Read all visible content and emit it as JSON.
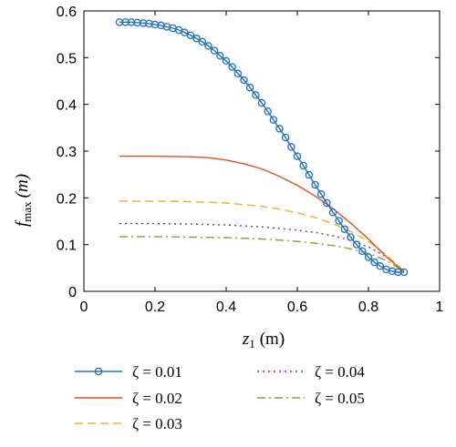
{
  "chart_data": {
    "type": "line",
    "xlabel_var": "z",
    "xlabel_sub": "1",
    "xlabel_unit": "(m)",
    "ylabel_var": "f",
    "ylabel_sub": "max",
    "ylabel_unit": "(m)",
    "xlim": [
      0,
      1
    ],
    "ylim": [
      0,
      0.6
    ],
    "xticks": [
      0,
      0.2,
      0.4,
      0.6,
      0.8,
      1
    ],
    "xtick_labels": [
      "0",
      "0.2",
      "0.4",
      "0.6",
      "0.8",
      "1"
    ],
    "yticks": [
      0,
      0.1,
      0.2,
      0.3,
      0.4,
      0.5,
      0.6
    ],
    "ytick_labels": [
      "0",
      "0.1",
      "0.2",
      "0.3",
      "0.4",
      "0.5",
      "0.6"
    ],
    "grid": false,
    "legend_position": "below",
    "series": [
      {
        "name": "ζ = 0.01",
        "color": "#1f6fbf",
        "style": "solid-circle",
        "x": [
          0.1,
          0.117,
          0.133,
          0.15,
          0.167,
          0.183,
          0.2,
          0.217,
          0.233,
          0.25,
          0.267,
          0.283,
          0.3,
          0.317,
          0.333,
          0.35,
          0.367,
          0.383,
          0.4,
          0.417,
          0.433,
          0.45,
          0.467,
          0.483,
          0.5,
          0.517,
          0.533,
          0.55,
          0.567,
          0.583,
          0.6,
          0.617,
          0.633,
          0.65,
          0.667,
          0.683,
          0.7,
          0.717,
          0.733,
          0.75,
          0.767,
          0.783,
          0.8,
          0.817,
          0.833,
          0.85,
          0.867,
          0.883,
          0.9
        ],
        "y": [
          0.576,
          0.576,
          0.576,
          0.575,
          0.574,
          0.573,
          0.571,
          0.569,
          0.566,
          0.563,
          0.559,
          0.554,
          0.548,
          0.541,
          0.534,
          0.525,
          0.515,
          0.504,
          0.493,
          0.48,
          0.466,
          0.452,
          0.436,
          0.42,
          0.403,
          0.385,
          0.367,
          0.348,
          0.329,
          0.309,
          0.289,
          0.269,
          0.249,
          0.228,
          0.208,
          0.189,
          0.169,
          0.151,
          0.133,
          0.116,
          0.1,
          0.086,
          0.073,
          0.062,
          0.054,
          0.047,
          0.043,
          0.041,
          0.041
        ]
      },
      {
        "name": "ζ = 0.02",
        "color": "#d95319",
        "style": "solid",
        "x": [
          0.1,
          0.2,
          0.3,
          0.35,
          0.4,
          0.45,
          0.5,
          0.55,
          0.6,
          0.65,
          0.7,
          0.75,
          0.8,
          0.85,
          0.9
        ],
        "y": [
          0.289,
          0.289,
          0.288,
          0.286,
          0.281,
          0.273,
          0.262,
          0.246,
          0.227,
          0.204,
          0.177,
          0.146,
          0.112,
          0.074,
          0.042
        ]
      },
      {
        "name": "ζ = 0.03",
        "color": "#edb120",
        "style": "dashed",
        "x": [
          0.1,
          0.2,
          0.3,
          0.4,
          0.5,
          0.55,
          0.6,
          0.65,
          0.7,
          0.75,
          0.8,
          0.85,
          0.9
        ],
        "y": [
          0.193,
          0.193,
          0.192,
          0.189,
          0.182,
          0.176,
          0.168,
          0.158,
          0.145,
          0.128,
          0.107,
          0.078,
          0.043
        ]
      },
      {
        "name": "ζ = 0.04",
        "color": "#7e2f8e",
        "style": "dotted",
        "x": [
          0.1,
          0.2,
          0.3,
          0.4,
          0.5,
          0.6,
          0.65,
          0.7,
          0.75,
          0.8,
          0.85,
          0.9
        ],
        "y": [
          0.145,
          0.145,
          0.144,
          0.142,
          0.138,
          0.131,
          0.126,
          0.119,
          0.109,
          0.095,
          0.074,
          0.043
        ]
      },
      {
        "name": "ζ = 0.05",
        "color": "#77ac30",
        "style": "dash-dot",
        "x": [
          0.1,
          0.2,
          0.3,
          0.4,
          0.5,
          0.6,
          0.65,
          0.7,
          0.75,
          0.8,
          0.85,
          0.9
        ],
        "y": [
          0.117,
          0.117,
          0.116,
          0.115,
          0.112,
          0.107,
          0.103,
          0.098,
          0.091,
          0.081,
          0.066,
          0.043
        ]
      }
    ]
  }
}
